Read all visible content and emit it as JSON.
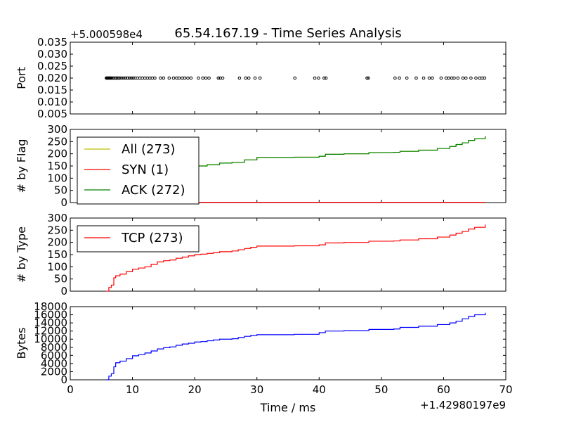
{
  "title": "65.54.167.19 - Time Series Analysis",
  "chart_data": [
    {
      "type": "scatter",
      "ylabel": "Port",
      "offset_label": "+5.000598e4",
      "ylim": [
        0.005,
        0.035
      ],
      "yticks": [
        "0.005",
        "0.010",
        "0.015",
        "0.020",
        "0.025",
        "0.030",
        "0.035"
      ],
      "x": [
        5.8,
        5.9,
        6.0,
        6.1,
        6.2,
        6.3,
        6.4,
        6.5,
        6.6,
        6.8,
        7.0,
        7.2,
        7.4,
        7.6,
        7.8,
        8.0,
        8.3,
        8.6,
        8.9,
        9.2,
        9.5,
        9.8,
        10.1,
        10.4,
        10.8,
        11.2,
        11.6,
        12.0,
        12.4,
        12.8,
        13.2,
        13.6,
        14.5,
        15.0,
        15.9,
        16.6,
        17.1,
        17.5,
        18.0,
        18.4,
        18.9,
        19.4,
        20.6,
        21.3,
        21.8,
        22.3,
        23.8,
        24.1,
        24.5,
        27.2,
        28.2,
        28.7,
        29.7,
        30.5,
        36.1,
        39.3,
        39.9,
        40.8,
        41.1,
        47.7,
        47.9,
        52.2,
        52.9,
        54.1,
        55.6,
        56.8,
        57.7,
        58.2,
        59.6,
        60.4,
        60.8,
        61.3,
        61.7,
        62.3,
        63.1,
        63.6,
        64.4,
        65.2,
        65.8,
        66.2,
        66.6
      ],
      "y": [
        0.02,
        0.02,
        0.02,
        0.02,
        0.02,
        0.02,
        0.02,
        0.02,
        0.02,
        0.02,
        0.02,
        0.02,
        0.02,
        0.02,
        0.02,
        0.02,
        0.02,
        0.02,
        0.02,
        0.02,
        0.02,
        0.02,
        0.02,
        0.02,
        0.02,
        0.02,
        0.02,
        0.02,
        0.02,
        0.02,
        0.02,
        0.02,
        0.02,
        0.02,
        0.02,
        0.02,
        0.02,
        0.02,
        0.02,
        0.02,
        0.02,
        0.02,
        0.02,
        0.02,
        0.02,
        0.02,
        0.02,
        0.02,
        0.02,
        0.02,
        0.02,
        0.02,
        0.02,
        0.02,
        0.02,
        0.02,
        0.02,
        0.02,
        0.02,
        0.02,
        0.02,
        0.02,
        0.02,
        0.02,
        0.02,
        0.02,
        0.02,
        0.02,
        0.02,
        0.02,
        0.02,
        0.02,
        0.02,
        0.02,
        0.02,
        0.02,
        0.02,
        0.02,
        0.02,
        0.02,
        0.02
      ],
      "marker_color": "#000000"
    },
    {
      "type": "line",
      "ylabel": "# by Flag",
      "ylim": [
        0,
        300
      ],
      "yticks": [
        "0",
        "50",
        "100",
        "150",
        "200",
        "250",
        "300"
      ],
      "legend_position": "upper-left",
      "series": [
        {
          "name": "All (273)",
          "color": "#bfbf00",
          "x": [
            5.8,
            7.0,
            8.0,
            10.0,
            12.0,
            14.0,
            16.0,
            18.0,
            20.0,
            22.0,
            24.0,
            26.0,
            28.0,
            30.0,
            33.0,
            36.0,
            40.0,
            41.0,
            44.0,
            48.0,
            52.0,
            53.0,
            56.0,
            59.0,
            61.0,
            62.0,
            63.0,
            64.0,
            65.0,
            66.7
          ],
          "y": [
            0,
            65,
            75,
            90,
            105,
            125,
            130,
            145,
            150,
            155,
            162,
            165,
            175,
            185,
            185,
            186,
            190,
            198,
            200,
            205,
            206,
            210,
            215,
            222,
            230,
            238,
            245,
            255,
            262,
            273
          ]
        },
        {
          "name": "SYN (1)",
          "color": "#ff0000",
          "x": [
            5.8,
            66.7
          ],
          "y": [
            1,
            1
          ]
        },
        {
          "name": "ACK (272)",
          "color": "#008000",
          "x": [
            5.8,
            7.0,
            8.0,
            10.0,
            12.0,
            14.0,
            16.0,
            18.0,
            20.0,
            22.0,
            24.0,
            26.0,
            28.0,
            30.0,
            33.0,
            36.0,
            40.0,
            41.0,
            44.0,
            48.0,
            52.0,
            53.0,
            56.0,
            59.0,
            61.0,
            62.0,
            63.0,
            64.0,
            65.0,
            66.7
          ],
          "y": [
            0,
            65,
            75,
            90,
            105,
            125,
            130,
            145,
            150,
            155,
            162,
            165,
            175,
            185,
            185,
            186,
            190,
            198,
            200,
            205,
            206,
            210,
            215,
            222,
            230,
            238,
            245,
            255,
            262,
            272
          ]
        }
      ]
    },
    {
      "type": "line",
      "ylabel": "# by Type",
      "ylim": [
        0,
        300
      ],
      "yticks": [
        "0",
        "50",
        "100",
        "150",
        "200",
        "250",
        "300"
      ],
      "legend_position": "upper-left",
      "series": [
        {
          "name": "TCP (273)",
          "color": "#ff0000",
          "x": [
            5.8,
            6.2,
            6.6,
            7.0,
            7.3,
            8.0,
            9.0,
            10.0,
            11.0,
            12.0,
            13.0,
            14.0,
            15.0,
            16.0,
            17.0,
            18.0,
            19.0,
            20.0,
            21.0,
            22.0,
            23.0,
            24.0,
            26.0,
            27.0,
            28.0,
            29.0,
            30.0,
            33.0,
            36.0,
            40.0,
            41.0,
            44.0,
            48.0,
            52.0,
            53.0,
            56.0,
            59.0,
            61.0,
            62.0,
            63.0,
            64.0,
            65.0,
            66.7
          ],
          "y": [
            0,
            15,
            25,
            55,
            63,
            70,
            80,
            90,
            95,
            100,
            110,
            120,
            125,
            128,
            135,
            140,
            145,
            150,
            152,
            155,
            158,
            162,
            165,
            170,
            175,
            180,
            185,
            185,
            186,
            190,
            198,
            200,
            205,
            206,
            210,
            215,
            222,
            230,
            238,
            245,
            255,
            262,
            273
          ]
        }
      ]
    },
    {
      "type": "line",
      "ylabel": "Bytes",
      "xlabel": "Time / ms",
      "x_offset_label": "+1.42980197e9",
      "xlim": [
        0,
        70
      ],
      "xticks": [
        "0",
        "10",
        "20",
        "30",
        "40",
        "50",
        "60",
        "70"
      ],
      "ylim": [
        0,
        18000
      ],
      "yticks": [
        "0",
        "2000",
        "4000",
        "6000",
        "8000",
        "10000",
        "12000",
        "14000",
        "16000",
        "18000"
      ],
      "series": [
        {
          "name": "",
          "color": "#0000ff",
          "x": [
            5.8,
            6.2,
            6.6,
            7.0,
            7.3,
            8.0,
            9.0,
            10.0,
            11.0,
            12.0,
            13.0,
            14.0,
            15.0,
            16.0,
            17.0,
            18.0,
            19.0,
            20.0,
            21.0,
            22.0,
            23.0,
            24.0,
            26.0,
            27.0,
            28.0,
            29.0,
            30.0,
            33.0,
            36.0,
            40.0,
            41.0,
            44.0,
            48.0,
            52.0,
            53.0,
            56.0,
            59.0,
            61.0,
            62.0,
            63.0,
            64.0,
            65.0,
            66.7
          ],
          "y": [
            0,
            900,
            1500,
            3200,
            4200,
            4600,
            5200,
            5900,
            6200,
            6600,
            7100,
            7600,
            7900,
            8100,
            8500,
            8800,
            9000,
            9300,
            9400,
            9600,
            9800,
            10000,
            10100,
            10400,
            10700,
            10900,
            11100,
            11100,
            11200,
            11600,
            12000,
            12100,
            12400,
            12500,
            12900,
            13200,
            13600,
            14000,
            14400,
            15000,
            15600,
            16000,
            16500
          ]
        }
      ]
    }
  ]
}
